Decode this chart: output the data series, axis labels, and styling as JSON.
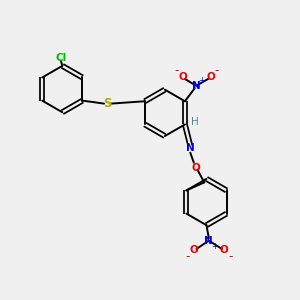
{
  "bg_color": "#f0f0f0",
  "bond_color": "#000000",
  "bond_width": 1.4,
  "atom_colors": {
    "Cl": "#00bb00",
    "S": "#aaaa00",
    "N": "#0000ee",
    "O": "#ee0000",
    "H": "#558888",
    "C": "#000000"
  },
  "font_size": 7.5,
  "figsize": [
    3.0,
    3.0
  ],
  "dpi": 100
}
